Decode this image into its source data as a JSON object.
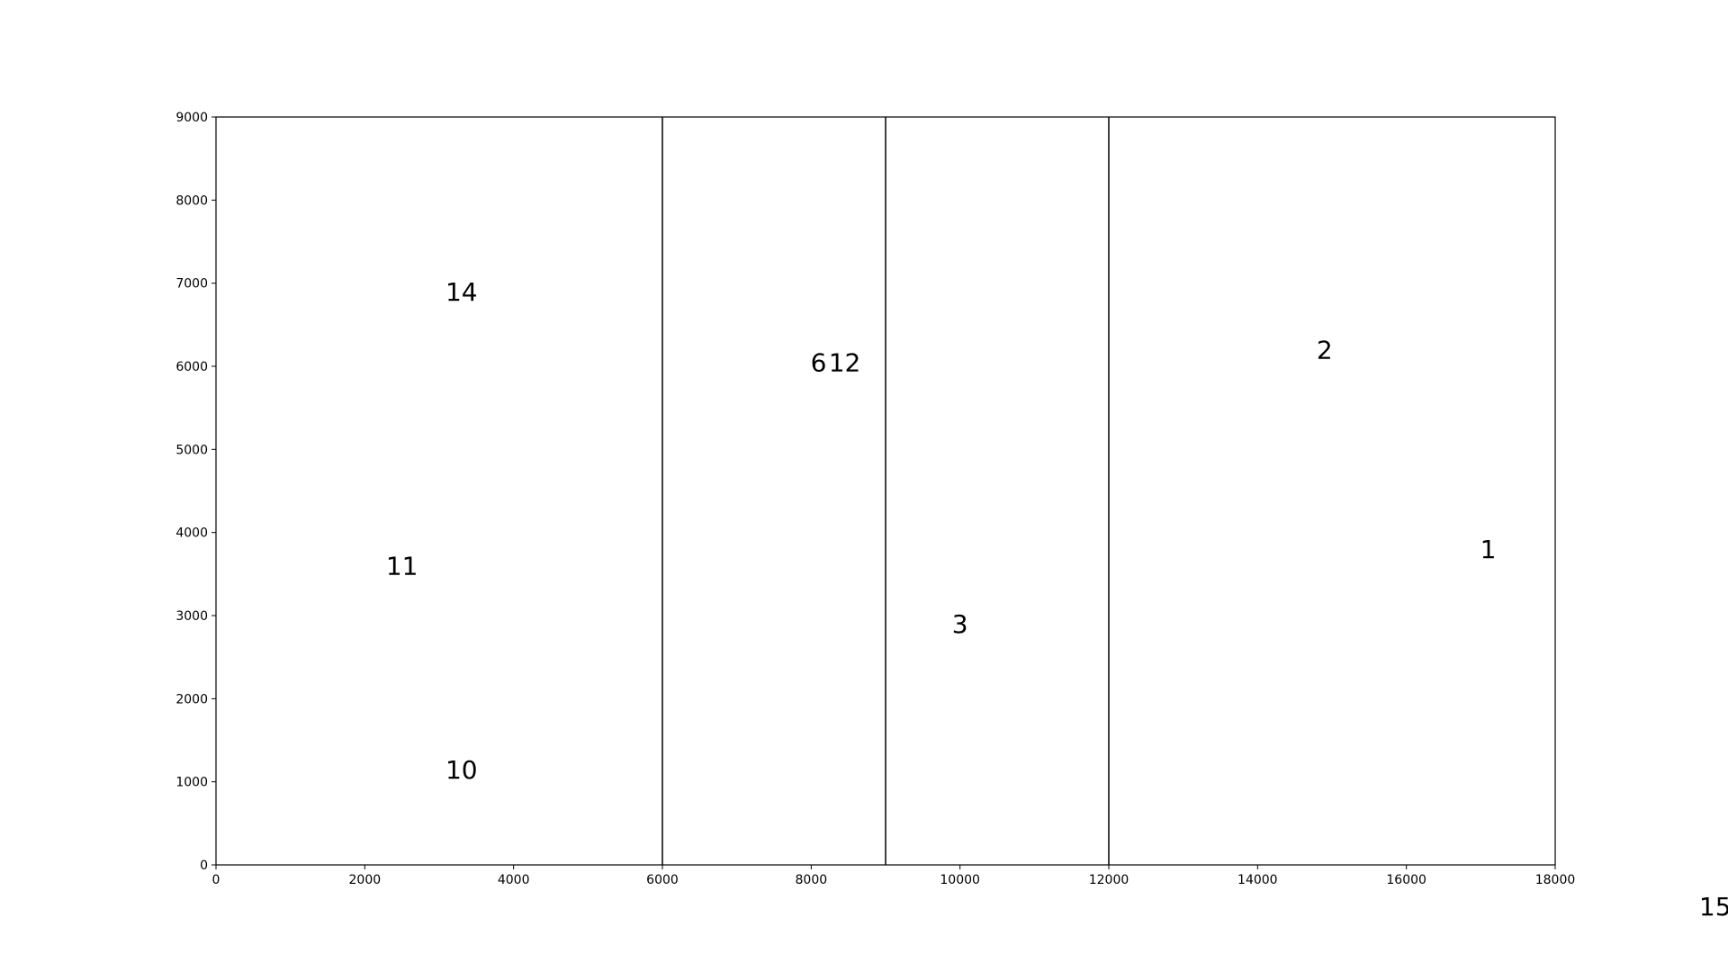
{
  "chart_data": {
    "type": "text",
    "xlim": [
      0,
      18000
    ],
    "ylim": [
      0,
      9000
    ],
    "xticks": [
      0,
      2000,
      4000,
      6000,
      8000,
      10000,
      12000,
      14000,
      16000,
      18000
    ],
    "yticks": [
      0,
      1000,
      2000,
      3000,
      4000,
      5000,
      6000,
      7000,
      8000,
      9000
    ],
    "vlines": [
      6000,
      9000,
      12000
    ],
    "color": "#000000",
    "points": [
      {
        "label": "14",
        "x": 3300,
        "y": 6900
      },
      {
        "label": "6",
        "x": 8100,
        "y": 6050
      },
      {
        "label": "12",
        "x": 8450,
        "y": 6050
      },
      {
        "label": "2",
        "x": 14900,
        "y": 6200
      },
      {
        "label": "11",
        "x": 2500,
        "y": 3600
      },
      {
        "label": "1",
        "x": 17100,
        "y": 3800
      },
      {
        "label": "3",
        "x": 10000,
        "y": 2900
      },
      {
        "label": "10",
        "x": 3300,
        "y": 1150
      },
      {
        "label": "15",
        "x": 20150,
        "y": -500
      }
    ]
  }
}
